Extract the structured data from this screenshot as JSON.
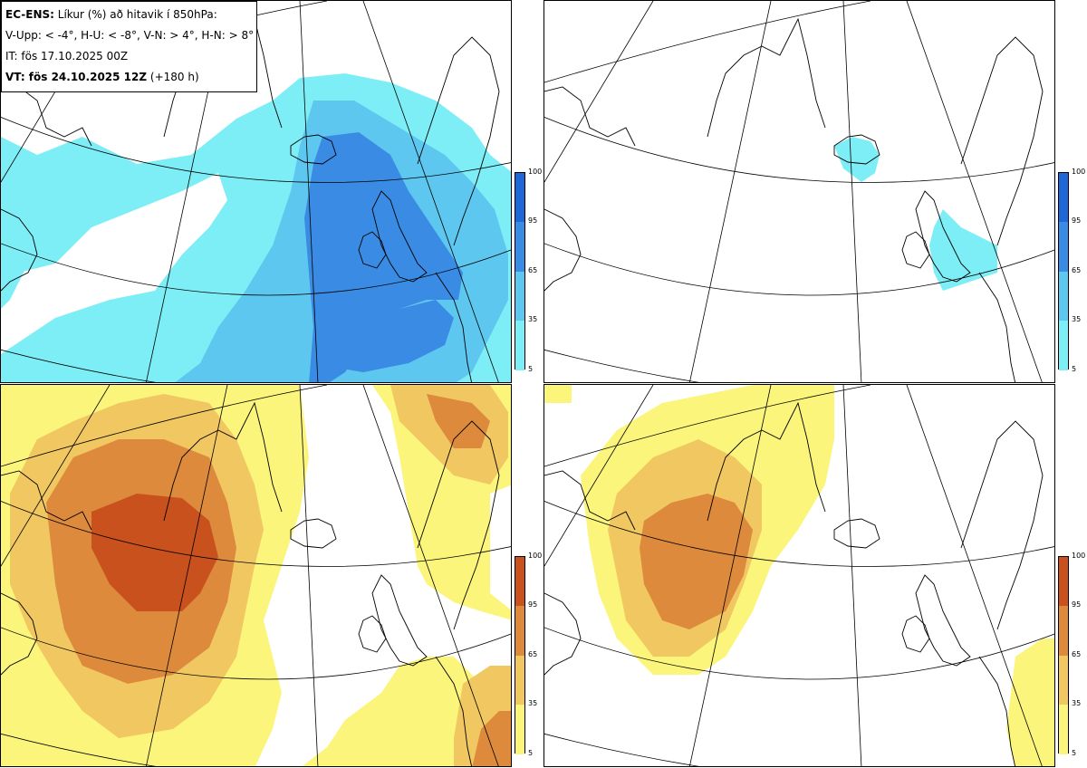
{
  "legend": {
    "line1_bold": "EC-ENS:",
    "line1_rest": " Líkur (%) að hitavik í 850hPa:",
    "line2": "V-Upp: < -4°, H-U: < -8°, V-N: > 4°, H-N: > 8°",
    "line3": "IT: fös 17.10.2025 00Z",
    "line4_bold": "VT: fös 24.10.2025 12Z",
    "line4_rest": " (+180 h)"
  },
  "colorbar": {
    "levels": [
      "100",
      "95",
      "65",
      "35",
      "5"
    ],
    "cold_colors": [
      "#1f66d6",
      "#3a8be3",
      "#5ec7ef",
      "#7eeef6"
    ],
    "warm_colors": [
      "#c8511e",
      "#dd8a3c",
      "#f0c760",
      "#fbf57c"
    ]
  },
  "panels": [
    {
      "id": "top-left",
      "variable": "V-Upp: < -4°",
      "palette": "cold"
    },
    {
      "id": "top-right",
      "variable": "H-U: < -8°",
      "palette": "cold"
    },
    {
      "id": "bottom-left",
      "variable": "V-N: > 4°",
      "palette": "warm"
    },
    {
      "id": "bottom-right",
      "variable": "H-N: > 8°",
      "palette": "warm"
    }
  ]
}
